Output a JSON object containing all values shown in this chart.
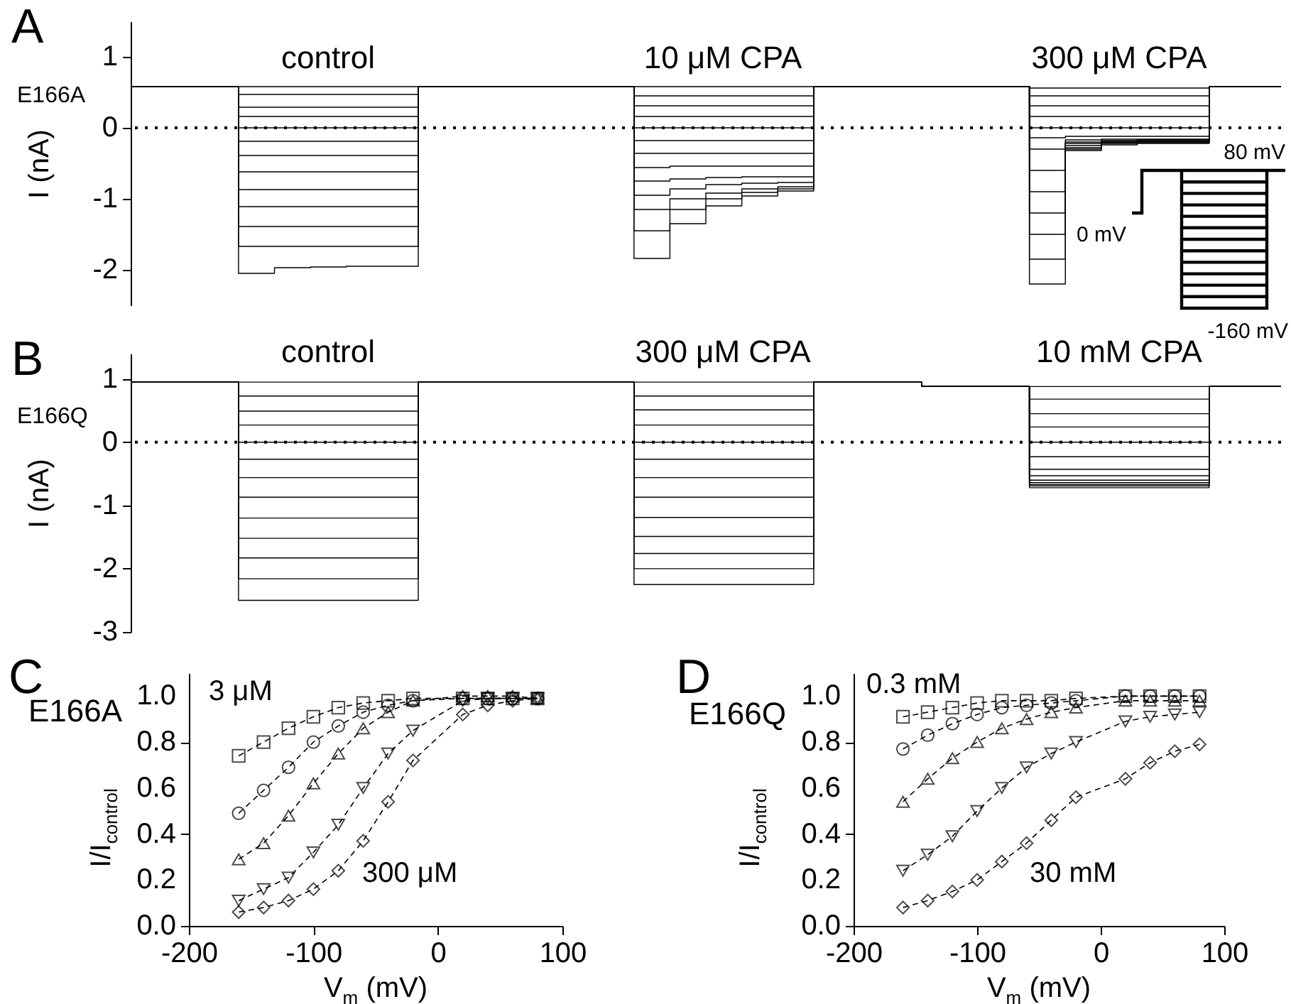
{
  "chart_data": [
    {
      "type": "step",
      "ylabel": "I (nA)",
      "annotations": [
        "A",
        "E166A",
        "control",
        "10 μM CPA",
        "300 μM CPA",
        "80 mV",
        "0 mV",
        "-160 mV"
      ],
      "categories": [
        null,
        null,
        null,
        null,
        null,
        null,
        null,
        null,
        null,
        null,
        null,
        null,
        null,
        null,
        null,
        null,
        null,
        null,
        null,
        null,
        null,
        null,
        null,
        null,
        null,
        null,
        null,
        null,
        null,
        null,
        null,
        null,
        null
      ],
      "ylim": [
        -2.5,
        1.5
      ],
      "yticks": [
        1,
        0,
        -1,
        -2
      ],
      "ref_lines": [
        {
          "axis": "y",
          "value": 0,
          "line_style": "dotted"
        }
      ],
      "series": [
        {
          "color": "#000000",
          "values": [
            0.58,
            0.58,
            0.58,
            0.58,
            0.58,
            0.58,
            0.58,
            0.58,
            0.58,
            0.58,
            0.58,
            0.58,
            0.58,
            0.58,
            0.58,
            0.58,
            0.58,
            0.58,
            0.58,
            0.58,
            0.58,
            0.58,
            0.58,
            0.58,
            0.58,
            0.56,
            0.56,
            0.56,
            0.56,
            0.56,
            0.58,
            0.58,
            0.58
          ]
        },
        {
          "color": "#000000",
          "values": [
            0.58,
            0.58,
            0.58,
            0.47,
            0.47,
            0.47,
            0.47,
            0.47,
            0.58,
            0.58,
            0.58,
            0.58,
            0.58,
            0.58,
            0.45,
            0.45,
            0.45,
            0.45,
            0.45,
            0.58,
            0.58,
            0.58,
            0.58,
            0.58,
            0.58,
            0.45,
            0.45,
            0.45,
            0.45,
            0.45,
            0.58,
            0.58,
            0.58
          ]
        },
        {
          "color": "#000000",
          "values": [
            0.58,
            0.58,
            0.58,
            0.29,
            0.29,
            0.29,
            0.29,
            0.29,
            0.58,
            0.58,
            0.58,
            0.58,
            0.58,
            0.58,
            0.31,
            0.31,
            0.31,
            0.31,
            0.31,
            0.58,
            0.58,
            0.58,
            0.58,
            0.58,
            0.58,
            0.31,
            0.31,
            0.31,
            0.31,
            0.31,
            0.58,
            0.58,
            0.58
          ]
        },
        {
          "color": "#000000",
          "values": [
            0.58,
            0.58,
            0.58,
            0.16,
            0.16,
            0.16,
            0.16,
            0.16,
            0.58,
            0.58,
            0.58,
            0.58,
            0.58,
            0.58,
            0.16,
            0.16,
            0.16,
            0.16,
            0.16,
            0.58,
            0.58,
            0.58,
            0.58,
            0.58,
            0.58,
            0.16,
            0.16,
            0.16,
            0.16,
            0.16,
            0.58,
            0.58,
            0.58
          ]
        },
        {
          "color": "#000000",
          "values": [
            0.58,
            0.58,
            0.58,
            0,
            0,
            0,
            0,
            0,
            0.58,
            0.58,
            0.58,
            0.58,
            0.58,
            0.58,
            0,
            0,
            0,
            0,
            0,
            0.58,
            0.58,
            0.58,
            0.58,
            0.58,
            0.58,
            0,
            0,
            0,
            0,
            0,
            0.58,
            0.58,
            0.58
          ]
        },
        {
          "color": "#000000",
          "values": [
            0.58,
            0.58,
            0.58,
            -0.19,
            -0.19,
            -0.19,
            -0.19,
            -0.19,
            0.58,
            0.58,
            0.58,
            0.58,
            0.58,
            0.58,
            -0.18,
            -0.18,
            -0.18,
            -0.18,
            -0.18,
            0.58,
            0.58,
            0.58,
            0.58,
            0.58,
            0.58,
            -0.14,
            -0.12,
            -0.12,
            -0.12,
            -0.12,
            0.58,
            0.58,
            0.58
          ]
        },
        {
          "color": "#000000",
          "values": [
            0.58,
            0.58,
            0.58,
            -0.39,
            -0.39,
            -0.39,
            -0.39,
            -0.39,
            0.58,
            0.58,
            0.58,
            0.58,
            0.58,
            0.58,
            -0.36,
            -0.36,
            -0.36,
            -0.36,
            -0.36,
            0.58,
            0.58,
            0.58,
            0.58,
            0.58,
            0.58,
            -0.3,
            -0.17,
            -0.16,
            -0.16,
            -0.16,
            0.58,
            0.58,
            0.58
          ]
        },
        {
          "color": "#000000",
          "values": [
            0.58,
            0.58,
            0.58,
            -0.62,
            -0.62,
            -0.62,
            -0.62,
            -0.62,
            0.58,
            0.58,
            0.58,
            0.58,
            0.58,
            0.58,
            -0.56,
            -0.54,
            -0.54,
            -0.54,
            -0.54,
            0.58,
            0.58,
            0.58,
            0.58,
            0.58,
            0.58,
            -0.6,
            -0.2,
            -0.18,
            -0.17,
            -0.17,
            0.58,
            0.58,
            0.58
          ]
        },
        {
          "color": "#000000",
          "values": [
            0.58,
            0.58,
            0.58,
            -0.87,
            -0.87,
            -0.87,
            -0.87,
            -0.87,
            0.58,
            0.58,
            0.58,
            0.58,
            0.58,
            0.58,
            -0.75,
            -0.72,
            -0.7,
            -0.69,
            -0.69,
            0.58,
            0.58,
            0.58,
            0.58,
            0.58,
            0.58,
            -0.9,
            -0.22,
            -0.19,
            -0.18,
            -0.18,
            0.58,
            0.58,
            0.58
          ]
        },
        {
          "color": "#000000",
          "values": [
            0.58,
            0.58,
            0.58,
            -1.11,
            -1.11,
            -1.11,
            -1.11,
            -1.11,
            0.58,
            0.58,
            0.58,
            0.58,
            0.58,
            0.58,
            -0.95,
            -0.86,
            -0.8,
            -0.78,
            -0.77,
            0.58,
            0.58,
            0.58,
            0.58,
            0.58,
            0.58,
            -1.2,
            -0.25,
            -0.2,
            -0.19,
            -0.19,
            0.58,
            0.58,
            0.58
          ]
        },
        {
          "color": "#000000",
          "values": [
            0.58,
            0.58,
            0.58,
            -1.39,
            -1.39,
            -1.39,
            -1.39,
            -1.39,
            0.58,
            0.58,
            0.58,
            0.58,
            0.58,
            0.58,
            -1.15,
            -1,
            -0.92,
            -0.86,
            -0.83,
            0.58,
            0.58,
            0.58,
            0.58,
            0.58,
            0.58,
            -1.5,
            -0.28,
            -0.21,
            -0.2,
            -0.2,
            0.58,
            0.58,
            0.58
          ]
        },
        {
          "color": "#000000",
          "values": [
            0.58,
            0.58,
            0.58,
            -1.67,
            -1.67,
            -1.67,
            -1.67,
            -1.67,
            0.58,
            0.58,
            0.58,
            0.58,
            0.58,
            0.58,
            -1.45,
            -1.15,
            -1,
            -0.91,
            -0.86,
            0.58,
            0.58,
            0.58,
            0.58,
            0.58,
            0.58,
            -1.85,
            -0.3,
            -0.22,
            -0.21,
            -0.21,
            0.58,
            0.58,
            0.58
          ]
        },
        {
          "color": "#000000",
          "values": [
            0.58,
            0.58,
            0.58,
            -2.05,
            -1.97,
            -1.96,
            -1.95,
            -1.95,
            0.58,
            0.58,
            0.58,
            0.58,
            0.58,
            0.58,
            -1.84,
            -1.35,
            -1.1,
            -0.96,
            -0.89,
            0.58,
            0.58,
            0.58,
            0.58,
            0.58,
            0.58,
            -2.2,
            -0.32,
            -0.24,
            -0.22,
            -0.22,
            0.58,
            0.58,
            0.58
          ]
        }
      ]
    },
    {
      "type": "step",
      "ylabel": "I (nA)",
      "annotations": [
        "B",
        "E166Q",
        "control",
        "300 μM CPA",
        "10 mM CPA"
      ],
      "categories": [
        null,
        null,
        null,
        null,
        null,
        null,
        null,
        null,
        null,
        null,
        null,
        null,
        null,
        null,
        null,
        null,
        null,
        null,
        null,
        null,
        null,
        null,
        null,
        null,
        null,
        null,
        null,
        null,
        null,
        null,
        null,
        null,
        null
      ],
      "ylim": [
        -3,
        1.4
      ],
      "yticks": [
        1,
        0,
        -1,
        -2,
        -3
      ],
      "ref_lines": [
        {
          "axis": "y",
          "value": 0,
          "line_style": "dotted"
        }
      ],
      "series": [
        {
          "color": "#000000",
          "values": [
            0.95,
            0.95,
            0.95,
            0.95,
            0.95,
            0.95,
            0.95,
            0.95,
            0.95,
            0.95,
            0.95,
            0.95,
            0.95,
            0.95,
            0.95,
            0.95,
            0.95,
            0.95,
            0.95,
            0.95,
            0.95,
            0.95,
            0.88,
            0.88,
            0.88,
            0.88,
            0.88,
            0.88,
            0.88,
            0.88,
            0.88,
            0.88,
            0.88
          ]
        },
        {
          "color": "#000000",
          "values": [
            0.95,
            0.95,
            0.95,
            0.73,
            0.73,
            0.73,
            0.73,
            0.73,
            0.95,
            0.95,
            0.95,
            0.95,
            0.95,
            0.95,
            0.73,
            0.73,
            0.73,
            0.73,
            0.73,
            0.95,
            0.95,
            0.95,
            0.88,
            0.88,
            0.88,
            0.68,
            0.68,
            0.68,
            0.68,
            0.68,
            0.88,
            0.88,
            0.88
          ]
        },
        {
          "color": "#000000",
          "values": [
            0.95,
            0.95,
            0.95,
            0.49,
            0.49,
            0.49,
            0.49,
            0.49,
            0.95,
            0.95,
            0.95,
            0.95,
            0.95,
            0.95,
            0.51,
            0.51,
            0.51,
            0.51,
            0.51,
            0.95,
            0.95,
            0.95,
            0.88,
            0.88,
            0.88,
            0.45,
            0.45,
            0.45,
            0.45,
            0.45,
            0.88,
            0.88,
            0.88
          ]
        },
        {
          "color": "#000000",
          "values": [
            0.95,
            0.95,
            0.95,
            0.27,
            0.27,
            0.27,
            0.27,
            0.27,
            0.95,
            0.95,
            0.95,
            0.95,
            0.95,
            0.95,
            0.27,
            0.27,
            0.27,
            0.27,
            0.27,
            0.95,
            0.95,
            0.95,
            0.88,
            0.88,
            0.88,
            0.24,
            0.24,
            0.24,
            0.24,
            0.24,
            0.88,
            0.88,
            0.88
          ]
        },
        {
          "color": "#000000",
          "values": [
            0.95,
            0.95,
            0.95,
            0,
            0,
            0,
            0,
            0,
            0.95,
            0.95,
            0.95,
            0.95,
            0.95,
            0.95,
            0,
            0,
            0,
            0,
            0,
            0.95,
            0.95,
            0.95,
            0.88,
            0.88,
            0.88,
            0,
            0,
            0,
            0,
            0,
            0.88,
            0.88,
            0.88
          ]
        },
        {
          "color": "#000000",
          "values": [
            0.95,
            0.95,
            0.95,
            -0.27,
            -0.27,
            -0.27,
            -0.27,
            -0.27,
            0.95,
            0.95,
            0.95,
            0.95,
            0.95,
            0.95,
            -0.27,
            -0.27,
            -0.27,
            -0.27,
            -0.27,
            0.95,
            0.95,
            0.95,
            0.88,
            0.88,
            0.88,
            -0.23,
            -0.23,
            -0.23,
            -0.23,
            -0.23,
            0.88,
            0.88,
            0.88
          ]
        },
        {
          "color": "#000000",
          "values": [
            0.95,
            0.95,
            0.95,
            -0.56,
            -0.56,
            -0.56,
            -0.56,
            -0.56,
            0.95,
            0.95,
            0.95,
            0.95,
            0.95,
            0.95,
            -0.56,
            -0.56,
            -0.56,
            -0.56,
            -0.56,
            0.95,
            0.95,
            0.95,
            0.88,
            0.88,
            0.88,
            -0.43,
            -0.43,
            -0.43,
            -0.43,
            -0.43,
            0.88,
            0.88,
            0.88
          ]
        },
        {
          "color": "#000000",
          "values": [
            0.95,
            0.95,
            0.95,
            -0.87,
            -0.87,
            -0.87,
            -0.87,
            -0.87,
            0.95,
            0.95,
            0.95,
            0.95,
            0.95,
            0.95,
            -0.87,
            -0.87,
            -0.87,
            -0.87,
            -0.87,
            0.95,
            0.95,
            0.95,
            0.88,
            0.88,
            0.88,
            -0.53,
            -0.53,
            -0.53,
            -0.53,
            -0.53,
            0.88,
            0.88,
            0.88
          ]
        },
        {
          "color": "#000000",
          "values": [
            0.95,
            0.95,
            0.95,
            -1.2,
            -1.2,
            -1.2,
            -1.2,
            -1.2,
            0.95,
            0.95,
            0.95,
            0.95,
            0.95,
            0.95,
            -1.19,
            -1.19,
            -1.19,
            -1.19,
            -1.19,
            0.95,
            0.95,
            0.95,
            0.88,
            0.88,
            0.88,
            -0.6,
            -0.6,
            -0.6,
            -0.6,
            -0.6,
            0.88,
            0.88,
            0.88
          ]
        },
        {
          "color": "#000000",
          "values": [
            0.95,
            0.95,
            0.95,
            -1.52,
            -1.52,
            -1.52,
            -1.52,
            -1.52,
            0.95,
            0.95,
            0.95,
            0.95,
            0.95,
            0.95,
            -1.49,
            -1.49,
            -1.49,
            -1.49,
            -1.49,
            0.95,
            0.95,
            0.95,
            0.88,
            0.88,
            0.88,
            -0.64,
            -0.64,
            -0.64,
            -0.64,
            -0.64,
            0.88,
            0.88,
            0.88
          ]
        },
        {
          "color": "#000000",
          "values": [
            0.95,
            0.95,
            0.95,
            -1.83,
            -1.83,
            -1.83,
            -1.83,
            -1.83,
            0.95,
            0.95,
            0.95,
            0.95,
            0.95,
            0.95,
            -1.76,
            -1.76,
            -1.76,
            -1.76,
            -1.76,
            0.95,
            0.95,
            0.95,
            0.88,
            0.88,
            0.88,
            -0.67,
            -0.67,
            -0.67,
            -0.67,
            -0.67,
            0.88,
            0.88,
            0.88
          ]
        },
        {
          "color": "#000000",
          "values": [
            0.95,
            0.95,
            0.95,
            -2.16,
            -2.16,
            -2.16,
            -2.16,
            -2.16,
            0.95,
            0.95,
            0.95,
            0.95,
            0.95,
            0.95,
            -2,
            -2,
            -2,
            -2,
            -2,
            0.95,
            0.95,
            0.95,
            0.88,
            0.88,
            0.88,
            -0.69,
            -0.69,
            -0.69,
            -0.69,
            -0.69,
            0.88,
            0.88,
            0.88
          ]
        },
        {
          "color": "#000000",
          "values": [
            0.95,
            0.95,
            0.95,
            -2.5,
            -2.5,
            -2.5,
            -2.5,
            -2.5,
            0.95,
            0.95,
            0.95,
            0.95,
            0.95,
            0.95,
            -2.25,
            -2.25,
            -2.25,
            -2.25,
            -2.25,
            0.95,
            0.95,
            0.95,
            0.88,
            0.88,
            0.88,
            -0.72,
            -0.72,
            -0.72,
            -0.72,
            -0.72,
            0.88,
            0.88,
            0.88
          ]
        }
      ]
    },
    {
      "type": "line",
      "xlabel": "V$_{m}$ (mV)",
      "ylabel": "I/I$_{control}$",
      "annotations": [
        "C",
        "E166A",
        "3 μM",
        "300 μM"
      ],
      "line_style": "dashed",
      "x": [
        -160,
        -140,
        -120,
        -100,
        -80,
        -60,
        -40,
        -20,
        20,
        40,
        60,
        80
      ],
      "xlim": [
        -200,
        100
      ],
      "xticks": [
        -200,
        -100,
        0,
        100
      ],
      "ylim": [
        0,
        1.1
      ],
      "yticks": [
        {
          "value": 0,
          "label": "0.0"
        },
        {
          "value": 0.2,
          "label": "0.2"
        },
        {
          "value": 0.4,
          "label": "0.4"
        },
        {
          "value": 0.6,
          "label": "0.6"
        },
        {
          "value": 0.8,
          "label": "0.8"
        },
        {
          "value": 1,
          "label": "1.0"
        }
      ],
      "series": [
        {
          "color": "#000000",
          "marker": "square",
          "values": [
            0.74,
            0.8,
            0.86,
            0.91,
            0.95,
            0.97,
            0.98,
            0.99,
            0.99,
            0.99,
            0.99,
            0.99
          ]
        },
        {
          "color": "#000000",
          "marker": "circle",
          "values": [
            0.49,
            0.59,
            0.69,
            0.8,
            0.87,
            0.93,
            0.96,
            0.98,
            0.99,
            0.99,
            0.99,
            0.99
          ]
        },
        {
          "color": "#000000",
          "marker": "triangle",
          "values": [
            0.29,
            0.36,
            0.48,
            0.62,
            0.75,
            0.86,
            0.93,
            0.98,
            1,
            1,
            1,
            0.99
          ]
        },
        {
          "color": "#000000",
          "marker": "triangle-down",
          "values": [
            0.11,
            0.16,
            0.21,
            0.32,
            0.44,
            0.6,
            0.75,
            0.85,
            0.98,
            0.99,
            0.99,
            0.99
          ]
        },
        {
          "color": "#000000",
          "marker": "diamond",
          "values": [
            0.06,
            0.08,
            0.11,
            0.16,
            0.24,
            0.37,
            0.54,
            0.72,
            0.92,
            0.96,
            0.98,
            0.99
          ]
        }
      ]
    },
    {
      "type": "line",
      "xlabel": "V$_{m}$ (mV)",
      "ylabel": "I/I$_{control}$",
      "annotations": [
        "D",
        "E166Q",
        "0.3 mM",
        "30 mM"
      ],
      "line_style": "dashed",
      "x": [
        -160,
        -140,
        -120,
        -100,
        -80,
        -60,
        -40,
        -20,
        20,
        40,
        60,
        80
      ],
      "xlim": [
        -200,
        100
      ],
      "xticks": [
        -200,
        -100,
        0,
        100
      ],
      "ylim": [
        0,
        1.1
      ],
      "yticks": [
        {
          "value": 0,
          "label": "0.0"
        },
        {
          "value": 0.2,
          "label": "0.2"
        },
        {
          "value": 0.4,
          "label": "0.4"
        },
        {
          "value": 0.6,
          "label": "0.6"
        },
        {
          "value": 0.8,
          "label": "0.8"
        },
        {
          "value": 1,
          "label": "1.0"
        }
      ],
      "series": [
        {
          "color": "#000000",
          "marker": "square",
          "values": [
            0.91,
            0.93,
            0.95,
            0.97,
            0.98,
            0.98,
            0.98,
            0.99,
            1,
            1,
            1,
            1
          ]
        },
        {
          "color": "#000000",
          "marker": "circle",
          "values": [
            0.77,
            0.83,
            0.88,
            0.92,
            0.95,
            0.96,
            0.97,
            0.98,
            1,
            1,
            1,
            1
          ]
        },
        {
          "color": "#000000",
          "marker": "triangle",
          "values": [
            0.54,
            0.64,
            0.73,
            0.8,
            0.86,
            0.9,
            0.93,
            0.95,
            0.98,
            0.98,
            0.98,
            0.98
          ]
        },
        {
          "color": "#000000",
          "marker": "triangle-down",
          "values": [
            0.24,
            0.31,
            0.39,
            0.5,
            0.6,
            0.69,
            0.75,
            0.8,
            0.89,
            0.91,
            0.92,
            0.93
          ]
        },
        {
          "color": "#000000",
          "marker": "diamond",
          "values": [
            0.08,
            0.11,
            0.15,
            0.2,
            0.28,
            0.36,
            0.46,
            0.56,
            0.64,
            0.71,
            0.76,
            0.79
          ]
        }
      ]
    }
  ]
}
